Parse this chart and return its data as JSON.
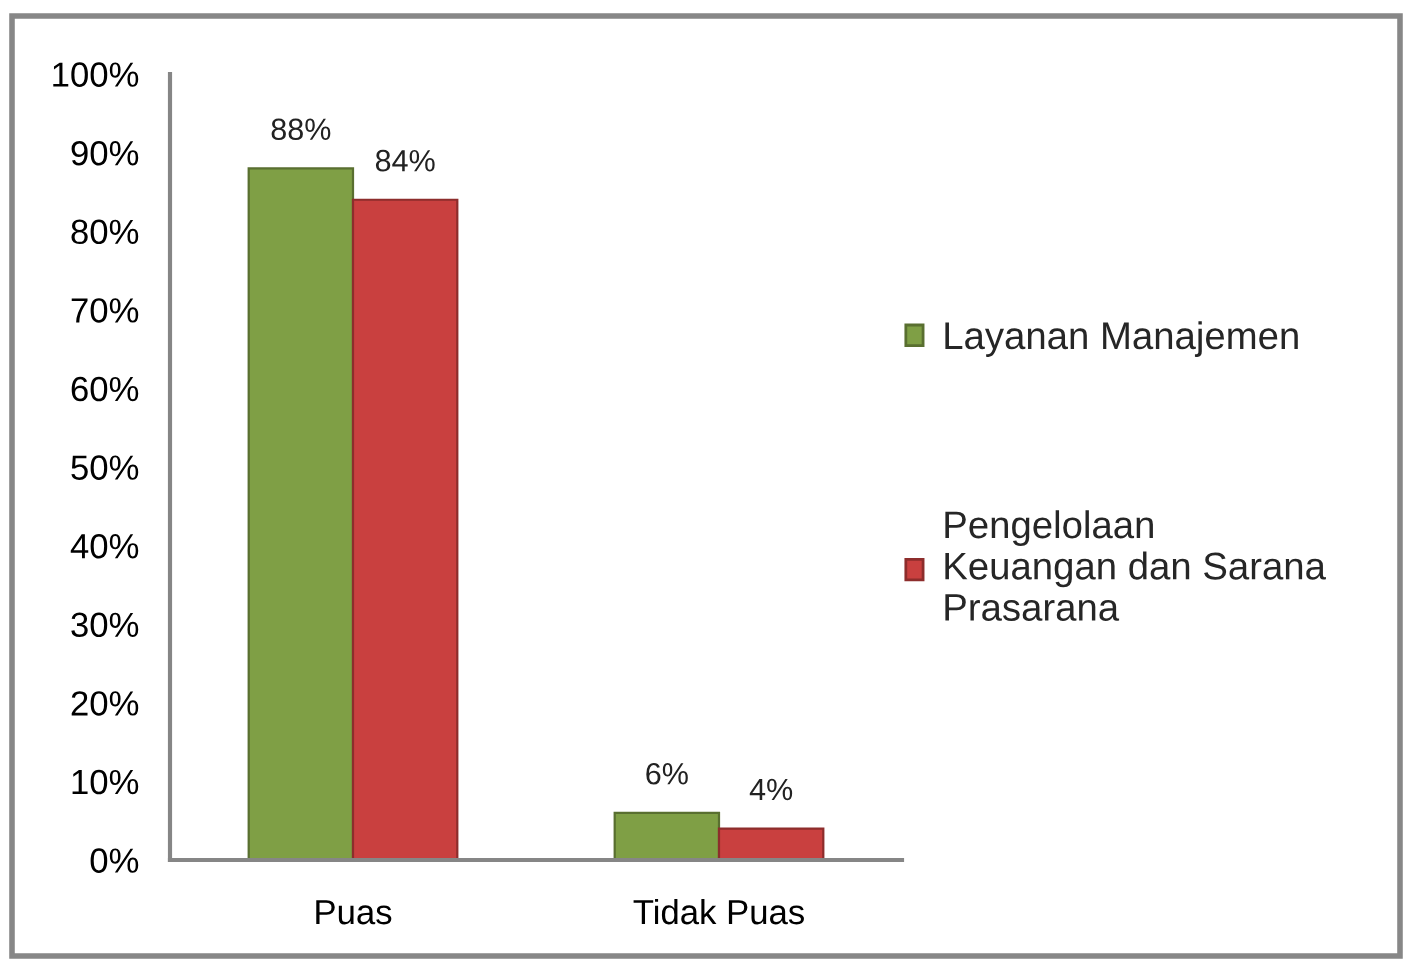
{
  "chart_data": {
    "type": "bar",
    "categories": [
      "Puas",
      "Tidak Puas"
    ],
    "series": [
      {
        "name": "Layanan Manajemen",
        "color": "#7f9f45",
        "values": [
          88,
          6
        ],
        "value_labels": [
          "88%",
          "6%"
        ]
      },
      {
        "name": "Pengelolaan Keuangan dan Sarana Prasarana",
        "color": "#c9403f",
        "values": [
          84,
          4
        ],
        "value_labels": [
          "84%",
          "4%"
        ]
      }
    ],
    "ylim": [
      0,
      100
    ],
    "yticks": [
      {
        "value": 0,
        "label": "0%"
      },
      {
        "value": 10,
        "label": "10%"
      },
      {
        "value": 20,
        "label": "20%"
      },
      {
        "value": 30,
        "label": "30%"
      },
      {
        "value": 40,
        "label": "40%"
      },
      {
        "value": 50,
        "label": "50%"
      },
      {
        "value": 60,
        "label": "60%"
      },
      {
        "value": 70,
        "label": "70%"
      },
      {
        "value": 80,
        "label": "80%"
      },
      {
        "value": 90,
        "label": "90%"
      },
      {
        "value": 100,
        "label": "100%"
      }
    ],
    "grid": false,
    "legend": "right"
  }
}
